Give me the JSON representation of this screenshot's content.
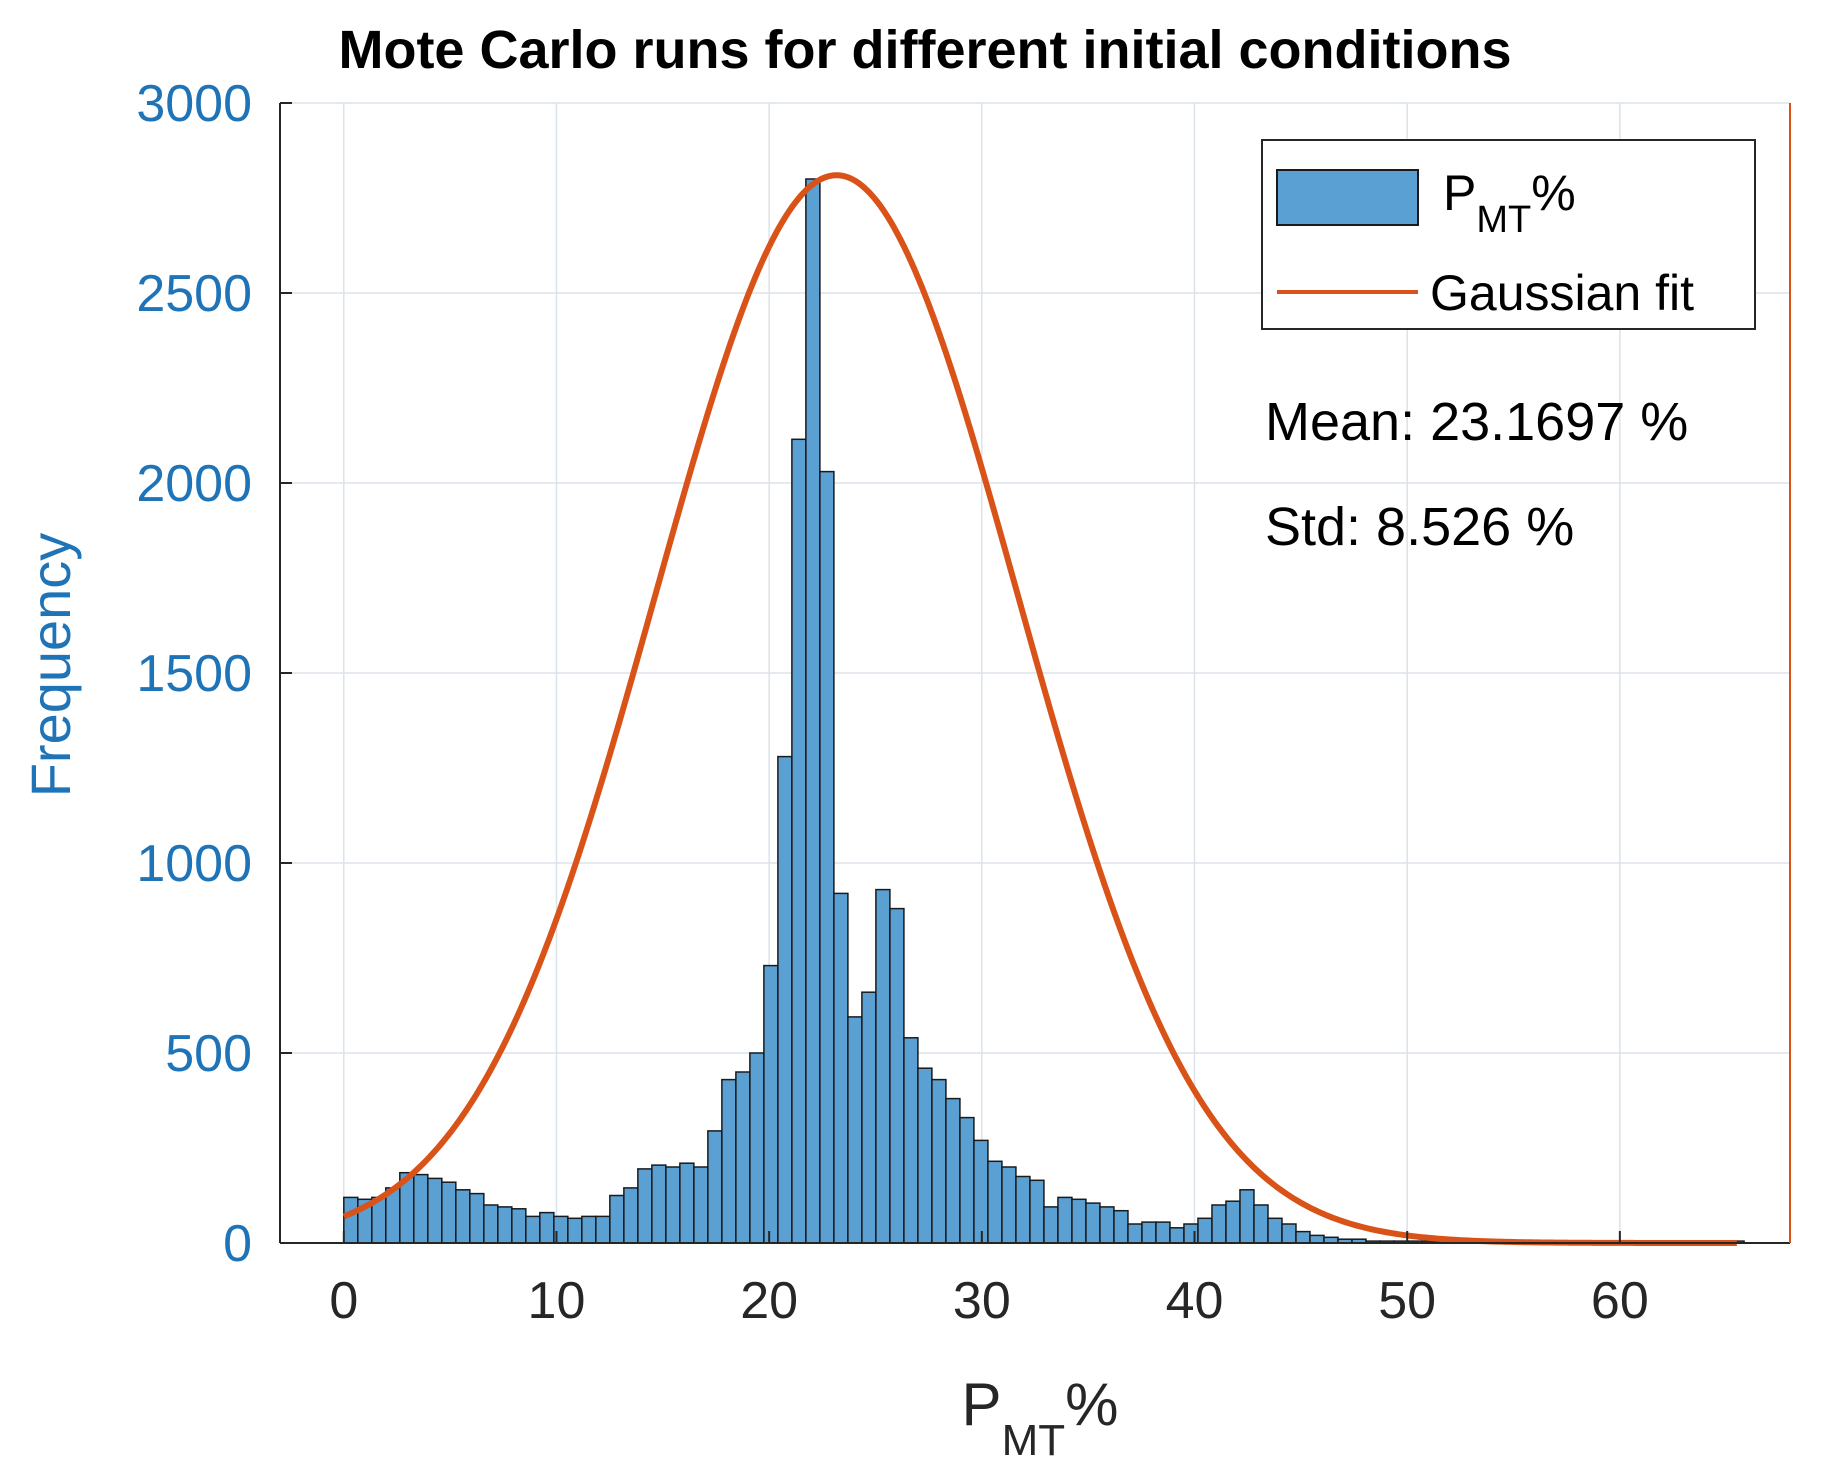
{
  "chart_data": {
    "type": "bar",
    "title": "Mote Carlo runs for different initial conditions",
    "xlabel": {
      "main": "P",
      "sub": "MT",
      "suffix": "%"
    },
    "ylabel": "Frequency",
    "xlim": [
      -3,
      68
    ],
    "ylim": [
      0,
      3000
    ],
    "xticks": [
      0,
      10,
      20,
      30,
      40,
      50,
      60
    ],
    "yticks": [
      0,
      500,
      1000,
      1500,
      2000,
      2500,
      3000
    ],
    "grid": true,
    "legend_position": "top-right",
    "legend": [
      {
        "type": "bar",
        "main": "P",
        "sub": "MT",
        "suffix": "%"
      },
      {
        "type": "line",
        "label": "Gaussian fit"
      }
    ],
    "annotations": [
      "Mean: 23.1697 %",
      "Std: 8.526 %"
    ],
    "histogram": {
      "name": "PMT%",
      "bin_start": 0,
      "bin_width": 0.6584,
      "counts": [
        120,
        115,
        120,
        145,
        185,
        180,
        170,
        160,
        140,
        130,
        100,
        95,
        90,
        70,
        80,
        70,
        65,
        70,
        70,
        125,
        145,
        195,
        205,
        200,
        210,
        200,
        295,
        430,
        450,
        500,
        730,
        1280,
        2115,
        2800,
        2030,
        920,
        595,
        660,
        930,
        880,
        540,
        460,
        430,
        380,
        330,
        270,
        215,
        200,
        175,
        165,
        95,
        120,
        115,
        105,
        95,
        85,
        50,
        55,
        55,
        40,
        50,
        65,
        100,
        110,
        140,
        100,
        65,
        50,
        30,
        20,
        15,
        10,
        10,
        5,
        5,
        5,
        5,
        5,
        5,
        5,
        5,
        5,
        5,
        5,
        5,
        5,
        5,
        5,
        5,
        5,
        5,
        5,
        5,
        5,
        5,
        5,
        5,
        5,
        5,
        5
      ]
    },
    "gaussian_fit": {
      "name": "Gaussian fit",
      "amplitude": 2810,
      "mean": 23.1697,
      "std": 8.526,
      "x_range": [
        0,
        65.5
      ]
    },
    "colors": {
      "bar_fill": "#5aa0d3",
      "bar_edge": "#1a1a1a",
      "fit_line": "#d95319",
      "axis_text": "#1f73b7",
      "x_axis_text": "#262626",
      "grid": "#dbe3ea",
      "axis_line": "#262626"
    }
  }
}
